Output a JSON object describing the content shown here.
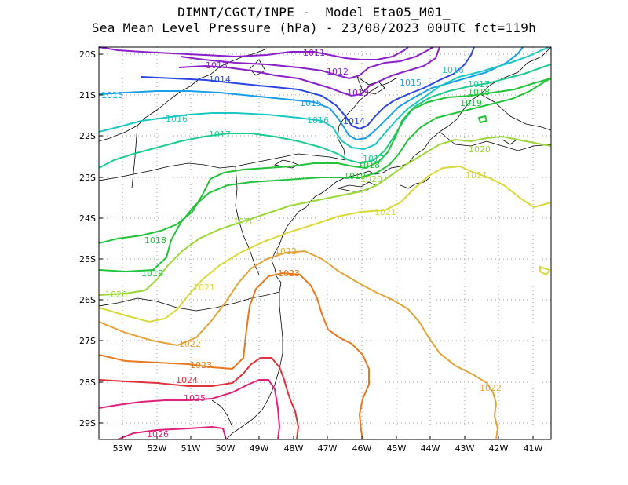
{
  "title_line1": "DIMNT/CGCT/INPE -  Model Eta05_M01_",
  "title_line2": "Sea Mean Level Pressure (hPa) - 23/08/2023 00UTC fct=119h",
  "lon_ticks": [
    "53W",
    "52W",
    "51W",
    "50W",
    "49W",
    "48W",
    "47W",
    "46W",
    "45W",
    "44W",
    "43W",
    "42W",
    "41W"
  ],
  "lat_ticks": [
    "20S",
    "21S",
    "22S",
    "23S",
    "24S",
    "25S",
    "26S",
    "27S",
    "28S",
    "29S"
  ],
  "isobar_labels": [
    {
      "text": "1011",
      "color": "#8a1fc9"
    },
    {
      "text": "1012",
      "color": "#8a1fc9"
    },
    {
      "text": "1013",
      "color": "#8a1fc9"
    },
    {
      "text": "1013",
      "color": "#8a1fc9"
    },
    {
      "text": "1014",
      "color": "#2a46e0"
    },
    {
      "text": "1014",
      "color": "#2a46e0"
    },
    {
      "text": "1015",
      "color": "#1a9ee6"
    },
    {
      "text": "1015",
      "color": "#1a9ee6"
    },
    {
      "text": "1015",
      "color": "#1a9ee6"
    },
    {
      "text": "1016",
      "color": "#1cc7c2"
    },
    {
      "text": "1016",
      "color": "#1cc7c2"
    },
    {
      "text": "1016",
      "color": "#1cc7c2"
    },
    {
      "text": "1017",
      "color": "#1ccc8c"
    },
    {
      "text": "1017",
      "color": "#1ccc8c"
    },
    {
      "text": "1017",
      "color": "#1ccc8c"
    },
    {
      "text": "1018",
      "color": "#22c33a"
    },
    {
      "text": "1018",
      "color": "#22c33a"
    },
    {
      "text": "1018",
      "color": "#22c33a"
    },
    {
      "text": "1019",
      "color": "#22c33a"
    },
    {
      "text": "1019",
      "color": "#22c33a"
    },
    {
      "text": "1019",
      "color": "#22c33a"
    },
    {
      "text": "1020",
      "color": "#9ad838"
    },
    {
      "text": "1020",
      "color": "#9ad838"
    },
    {
      "text": "1020",
      "color": "#9ad838"
    },
    {
      "text": "1020",
      "color": "#9ad838"
    },
    {
      "text": "1021",
      "color": "#d8d83a"
    },
    {
      "text": "1021",
      "color": "#d8d83a"
    },
    {
      "text": "1021",
      "color": "#d8d83a"
    },
    {
      "text": "1022",
      "color": "#e0a43a"
    },
    {
      "text": "1022",
      "color": "#e0a43a"
    },
    {
      "text": "1022",
      "color": "#e0a43a"
    },
    {
      "text": "1023",
      "color": "#e8781e"
    },
    {
      "text": "1023",
      "color": "#e8781e"
    },
    {
      "text": "1024",
      "color": "#e0323a"
    },
    {
      "text": "1025",
      "color": "#e0207a"
    },
    {
      "text": "1026",
      "color": "#e0207a"
    }
  ]
}
